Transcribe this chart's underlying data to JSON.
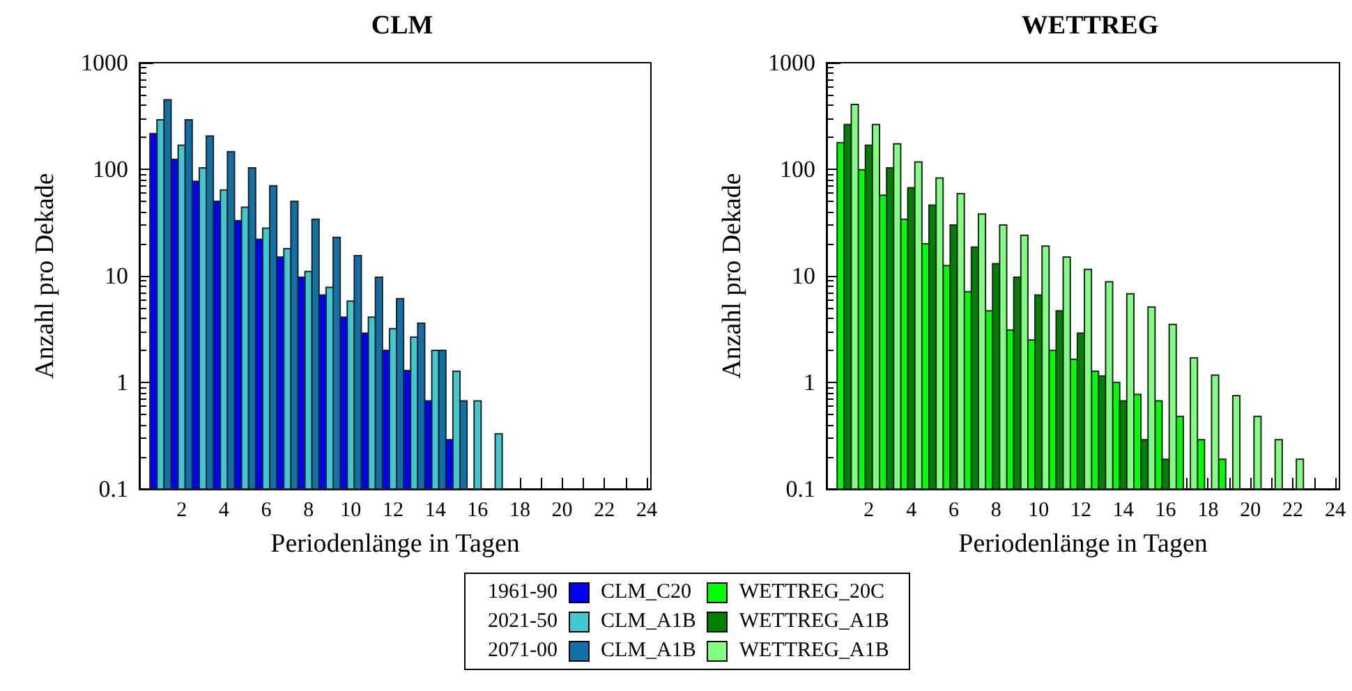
{
  "chart_data": [
    {
      "type": "bar",
      "title": "CLM",
      "xlabel": "Periodenlänge in Tagen",
      "ylabel": "Anzahl pro Dekade",
      "x": [
        1,
        2,
        3,
        4,
        5,
        6,
        7,
        8,
        9,
        10,
        11,
        12,
        13,
        14,
        15,
        16,
        17
      ],
      "series": [
        {
          "name": "CLM_C20",
          "color": "#0000ff",
          "values": [
            216,
            124,
            77,
            50,
            33,
            22,
            15,
            9.7,
            6.6,
            4.1,
            2.9,
            2.0,
            1.29,
            0.67,
            0.29,
            null,
            null
          ]
        },
        {
          "name": "CLM_A1B",
          "color": "#40c8d0",
          "values": [
            291,
            168,
            103,
            64,
            44,
            28,
            18,
            11,
            7.8,
            5.8,
            4.1,
            3.2,
            2.66,
            2.0,
            1.27,
            0.67,
            0.33
          ]
        },
        {
          "name": "CLM_A1B",
          "color": "#1070a8",
          "values": [
            448,
            291,
            205,
            146,
            103,
            70,
            50,
            34,
            23,
            15.5,
            9.7,
            6.1,
            3.6,
            2.0,
            0.67,
            null,
            null
          ]
        }
      ],
      "xlim": [
        0,
        24.2
      ],
      "xticks": [
        {
          "value": 1,
          "label": null
        },
        2,
        {
          "value": 3,
          "label": null
        },
        4,
        {
          "value": 5,
          "label": null
        },
        6,
        {
          "value": 7,
          "label": null
        },
        8,
        {
          "value": 9,
          "label": null
        },
        10,
        {
          "value": 11,
          "label": null
        },
        12,
        {
          "value": 13,
          "label": null
        },
        14,
        {
          "value": 15,
          "label": null
        },
        16,
        {
          "value": 17,
          "label": null
        },
        18,
        {
          "value": 19,
          "label": null
        },
        20,
        {
          "value": 21,
          "label": null
        },
        22,
        {
          "value": 23,
          "label": null
        },
        24
      ],
      "ylim": [
        0.1,
        1000
      ],
      "yticks": [
        0.1,
        1,
        10,
        100,
        1000
      ],
      "log": true,
      "legend": "bottom",
      "annotations": [
        "1961-90",
        "2021-50",
        "2071-00"
      ]
    },
    {
      "type": "bar",
      "title": "WETTREG",
      "xlabel": "Periodenlänge in Tagen",
      "ylabel": "Anzahl pro Dekade",
      "x": [
        1,
        2,
        3,
        4,
        5,
        6,
        7,
        8,
        9,
        10,
        11,
        12,
        13,
        14,
        15,
        16,
        17,
        18,
        19,
        20,
        21,
        22
      ],
      "series": [
        {
          "name": "WETTREG_20C",
          "color": "#00ff00",
          "values": [
            178,
            99,
            57,
            34,
            20,
            12.5,
            7.1,
            4.7,
            3.1,
            2.5,
            2.0,
            1.65,
            1.27,
            1.0,
            0.77,
            0.67,
            0.48,
            0.29,
            0.19,
            null,
            null,
            null
          ]
        },
        {
          "name": "WETTREG_A1B",
          "color": "#008000",
          "values": [
            263,
            168,
            103,
            67,
            46,
            30,
            18.6,
            13,
            9.7,
            6.6,
            4.7,
            2.9,
            1.15,
            0.67,
            0.29,
            0.19,
            null,
            null,
            null,
            null,
            null,
            null
          ]
        },
        {
          "name": "WETTREG_A1B",
          "color": "#80ff80",
          "values": [
            405,
            263,
            173,
            117,
            83,
            59,
            38,
            30,
            24,
            19,
            15,
            11.5,
            8.8,
            6.8,
            5.1,
            3.5,
            1.7,
            1.17,
            0.75,
            0.48,
            0.29,
            0.19
          ]
        }
      ],
      "xlim": [
        0,
        24.2
      ],
      "xticks": [
        {
          "value": 1,
          "label": null
        },
        2,
        {
          "value": 3,
          "label": null
        },
        4,
        {
          "value": 5,
          "label": null
        },
        6,
        {
          "value": 7,
          "label": null
        },
        8,
        {
          "value": 9,
          "label": null
        },
        10,
        {
          "value": 11,
          "label": null
        },
        12,
        {
          "value": 13,
          "label": null
        },
        14,
        {
          "value": 15,
          "label": null
        },
        16,
        {
          "value": 17,
          "label": null
        },
        18,
        {
          "value": 19,
          "label": null
        },
        20,
        {
          "value": 21,
          "label": null
        },
        22,
        {
          "value": 23,
          "label": null
        },
        24
      ],
      "ylim": [
        0.1,
        1000
      ],
      "yticks": [
        0.1,
        1,
        10,
        100,
        1000
      ],
      "log": true,
      "legend": "bottom"
    }
  ]
}
